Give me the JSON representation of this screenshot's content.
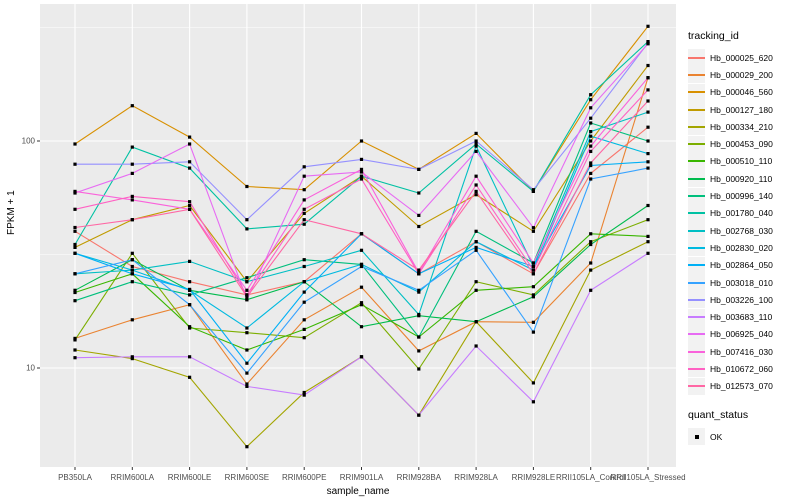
{
  "chart_data": {
    "type": "line",
    "title": "",
    "xlabel": "sample_name",
    "ylabel": "FPKM + 1",
    "y_scale": "log10",
    "y_ticks": [
      {
        "value": 100,
        "label": "100"
      },
      {
        "value": 10,
        "label": "10"
      }
    ],
    "y_minor_ticks": [
      316.2,
      31.62
    ],
    "ylim": [
      3.7,
      400
    ],
    "grid": true,
    "legend_position": "right",
    "marker": {
      "shape": "small-black-square",
      "color": "#000000"
    },
    "categories": [
      "PB350LA",
      "RRIM600LA",
      "RRIM600LE",
      "RRIM600SE",
      "RRIM600PE",
      "RRIM901LA",
      "RRIM928BA",
      "RRIM928LA",
      "RRIM928LE",
      "RRII105LA_Control",
      "RRII105LA_Stressed"
    ],
    "series": [
      {
        "name": "Hb_000025_620",
        "color": "#F8766D",
        "values": [
          40,
          28,
          24,
          21,
          24,
          39,
          26,
          36,
          26,
          72,
          115
        ]
      },
      {
        "name": "Hb_000029_200",
        "color": "#EA8331",
        "values": [
          13.5,
          16.3,
          19,
          8.5,
          16.3,
          22.7,
          11.9,
          16,
          15.9,
          29,
          190
        ]
      },
      {
        "name": "Hb_000046_560",
        "color": "#D89000",
        "values": [
          97,
          143,
          104,
          63,
          61,
          100,
          75,
          108,
          60,
          152,
          320
        ]
      },
      {
        "name": "Hb_000127_180",
        "color": "#C09B00",
        "values": [
          34,
          45,
          52,
          24,
          48,
          70,
          42,
          58,
          40,
          100,
          215
        ]
      },
      {
        "name": "Hb_000334_210",
        "color": "#A3A500",
        "values": [
          12,
          11,
          9.1,
          4.5,
          7.8,
          11.2,
          6.2,
          16,
          8.6,
          27,
          36
        ]
      },
      {
        "name": "Hb_000453_090",
        "color": "#7CAE00",
        "values": [
          13.3,
          32,
          15,
          14.3,
          13.6,
          19.4,
          9.9,
          24,
          21,
          36,
          45
        ]
      },
      {
        "name": "Hb_000510_110",
        "color": "#39B600",
        "values": [
          21.5,
          26,
          15.2,
          12,
          14.8,
          19,
          13.7,
          22,
          22.8,
          39,
          38
        ]
      },
      {
        "name": "Hb_000920_110",
        "color": "#00BB4E",
        "values": [
          22,
          30,
          22,
          20,
          24,
          15.2,
          17,
          16,
          20.6,
          35,
          52
        ]
      },
      {
        "name": "Hb_000996_140",
        "color": "#00BF7D",
        "values": [
          19.8,
          24,
          21,
          25,
          30,
          28.6,
          13.7,
          40,
          29,
          120,
          100
        ]
      },
      {
        "name": "Hb_001780_040",
        "color": "#00C1A3",
        "values": [
          35,
          94,
          76,
          41,
          43,
          70,
          59,
          97,
          60,
          160,
          274
        ]
      },
      {
        "name": "Hb_002768_030",
        "color": "#00BFC4",
        "values": [
          26,
          27,
          29.5,
          24,
          28,
          33,
          17.2,
          95,
          28,
          110,
          134
        ]
      },
      {
        "name": "Hb_002830_020",
        "color": "#00BAE0",
        "values": [
          32,
          27,
          22,
          15,
          24,
          28.6,
          21.6,
          36,
          27,
          105,
          88
        ]
      },
      {
        "name": "Hb_002864_050",
        "color": "#00B0F6",
        "values": [
          32,
          26,
          22.2,
          10.5,
          21.6,
          39,
          26,
          34,
          28,
          78,
          81
        ]
      },
      {
        "name": "Hb_003018_010",
        "color": "#35A2FF",
        "values": [
          26,
          30,
          19,
          9.5,
          19.5,
          28,
          22,
          33,
          14.4,
          68,
          76
        ]
      },
      {
        "name": "Hb_003226_100",
        "color": "#9590FF",
        "values": [
          79,
          79,
          81,
          45,
          77,
          83,
          75,
          100,
          61,
          126,
          270
        ]
      },
      {
        "name": "Hb_003683_110",
        "color": "#C77CFF",
        "values": [
          11.1,
          11.2,
          11.2,
          8.3,
          7.6,
          11.2,
          6.2,
          12.5,
          7.1,
          22,
          32
        ]
      },
      {
        "name": "Hb_006925_040",
        "color": "#E76BF3",
        "values": [
          59,
          72,
          97,
          20,
          70,
          73,
          47,
          90,
          41.5,
          140,
          268
        ]
      },
      {
        "name": "Hb_007416_030",
        "color": "#FA62DB",
        "values": [
          60,
          55,
          50,
          22,
          55,
          75,
          26.3,
          70,
          29,
          95,
          190
        ]
      },
      {
        "name": "Hb_010672_060",
        "color": "#FF61C3",
        "values": [
          50,
          57,
          54,
          21,
          50,
          68,
          26,
          64,
          27,
          90,
          168
        ]
      },
      {
        "name": "Hb_012573_070",
        "color": "#FF67A4",
        "values": [
          41.6,
          45,
          50,
          20.6,
          45,
          39,
          27,
          60,
          26,
          80,
          150
        ]
      }
    ]
  },
  "legend": {
    "tracking_title": "tracking_id",
    "quant_title": "quant_status",
    "quant_items": [
      {
        "label": "OK"
      }
    ]
  },
  "panel": {
    "background": "#EBEBEB",
    "grid_color": "#FFFFFF",
    "tick_color": "#333333",
    "text_color": "#4d4d4d"
  }
}
